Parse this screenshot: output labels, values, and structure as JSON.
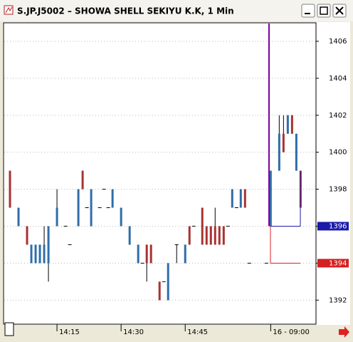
{
  "window_title": "S.JP.J5002 – SHOWA SHELL SEKIYU K.K, 1 Min",
  "chart_data": {
    "type": "candlestick",
    "x": [
      0,
      2,
      4,
      5,
      6,
      7,
      8,
      9,
      11,
      13,
      14,
      16,
      17,
      18,
      19,
      21,
      22,
      23,
      24,
      26,
      28,
      30,
      31,
      32,
      33,
      35,
      36,
      37,
      39,
      41,
      42,
      43,
      45,
      46,
      47,
      48,
      49,
      50,
      51,
      52,
      53,
      54,
      55,
      56,
      60,
      61,
      63,
      64,
      65,
      66,
      67,
      68
    ],
    "open": [
      1399,
      1396,
      1396,
      1394,
      1394,
      1394,
      1394,
      1394,
      1396,
      1396,
      1395,
      1396,
      1399,
      1397,
      1396,
      1397,
      1398,
      1397,
      1397,
      1396,
      1395,
      1394,
      1394,
      1395,
      1395,
      1393,
      1393,
      1392,
      1395,
      1394,
      1396,
      1396,
      1397,
      1396,
      1396,
      1396,
      1396,
      1396,
      1396,
      1397,
      1397,
      1397,
      1398,
      1394,
      1394,
      1396,
      1399,
      1401,
      1401,
      1402,
      1399,
      1399
    ],
    "high": [
      1399,
      1397,
      1396,
      1395,
      1395,
      1395,
      1396,
      1396,
      1398,
      1396,
      1395,
      1398,
      1399,
      1397,
      1398,
      1397,
      1398,
      1397,
      1398,
      1397,
      1396,
      1395,
      1394,
      1395,
      1395,
      1393,
      1393,
      1394,
      1395,
      1395,
      1396,
      1396,
      1397,
      1396,
      1396,
      1397,
      1396,
      1396,
      1396,
      1398,
      1397,
      1398,
      1398,
      1394,
      1394,
      1399,
      1402,
      1402,
      1402,
      1402,
      1401,
      1399
    ],
    "low": [
      1397,
      1396,
      1395,
      1394,
      1394,
      1394,
      1394,
      1393,
      1396,
      1396,
      1395,
      1396,
      1398,
      1397,
      1396,
      1397,
      1398,
      1397,
      1397,
      1396,
      1395,
      1394,
      1394,
      1393,
      1394,
      1392,
      1393,
      1392,
      1394,
      1394,
      1395,
      1396,
      1395,
      1395,
      1395,
      1395,
      1395,
      1395,
      1396,
      1397,
      1397,
      1397,
      1397,
      1394,
      1394,
      1396,
      1399,
      1400,
      1401,
      1401,
      1399,
      1397
    ],
    "close": [
      1397,
      1397,
      1395,
      1395,
      1395,
      1395,
      1395,
      1396,
      1397,
      1396,
      1395,
      1398,
      1398,
      1397,
      1398,
      1397,
      1398,
      1397,
      1398,
      1397,
      1396,
      1395,
      1394,
      1394,
      1394,
      1392,
      1393,
      1394,
      1395,
      1395,
      1395,
      1396,
      1395,
      1395,
      1395,
      1395,
      1395,
      1395,
      1396,
      1398,
      1397,
      1398,
      1397,
      1394,
      1394,
      1399,
      1401,
      1400,
      1402,
      1401,
      1401,
      1397
    ],
    "up_color": "#2f6da8",
    "down_color": "#a83232",
    "xlim": [
      -1.5,
      71.6
    ],
    "xticks": [
      {
        "value": 11,
        "label": "14:15"
      },
      {
        "value": 26,
        "label": "14:30"
      },
      {
        "value": 41,
        "label": "14:45"
      },
      {
        "value": 61,
        "label": "16 - 09:00"
      }
    ],
    "ylim": [
      1390.7,
      1407
    ],
    "yticks": [
      1392,
      1394,
      1396,
      1398,
      1400,
      1402,
      1404,
      1406
    ],
    "grid": true,
    "levels": [
      {
        "value": 1396,
        "color": "#1a1aa8"
      },
      {
        "value": 1394,
        "color": "#d42020"
      }
    ],
    "marker_color": "#8000a0"
  }
}
